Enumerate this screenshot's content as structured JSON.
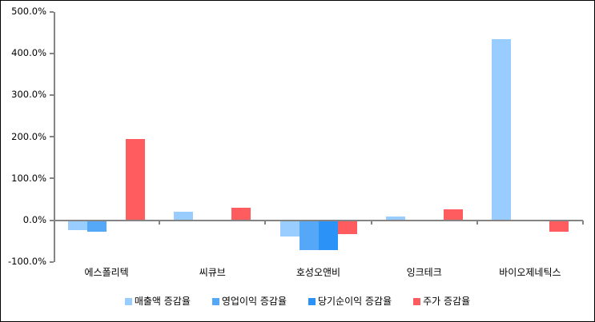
{
  "chart": {
    "background": "#FFFFFF",
    "border_color": "#000000",
    "axis_color": "#848484",
    "text_color": "#000000"
  },
  "chart_data": {
    "type": "bar",
    "title": "",
    "xlabel": "",
    "ylabel": "",
    "grid": false,
    "legend_position": "bottom",
    "categories": [
      "에스폴리텍",
      "씨큐브",
      "호성오앤비",
      "잉크테크",
      "바이오제네틱스"
    ],
    "series": [
      {
        "name": "매출액 증감율",
        "color": "#99CCFF",
        "values": [
          -23,
          20,
          -40,
          9,
          433
        ]
      },
      {
        "name": "영업이익 증감율",
        "color": "#55A8F8",
        "values": [
          -28,
          0,
          -72,
          0,
          0
        ]
      },
      {
        "name": "당기순이익 증감율",
        "color": "#2B93F8",
        "values": [
          0,
          0,
          -72,
          0,
          0
        ]
      },
      {
        "name": "주가 증감율",
        "color": "#FF5C5F",
        "values": [
          195,
          30,
          -33,
          26,
          -27
        ]
      }
    ],
    "ylim": [
      -100,
      500
    ],
    "y_ticks": [
      {
        "value": 500,
        "label": "500.0%"
      },
      {
        "value": 400,
        "label": "400.0%"
      },
      {
        "value": 300,
        "label": "300.0%"
      },
      {
        "value": 200,
        "label": "200.0%"
      },
      {
        "value": 100,
        "label": "100.0%"
      },
      {
        "value": 0,
        "label": "0.0%"
      },
      {
        "value": -100,
        "label": "-100.0%"
      }
    ]
  }
}
